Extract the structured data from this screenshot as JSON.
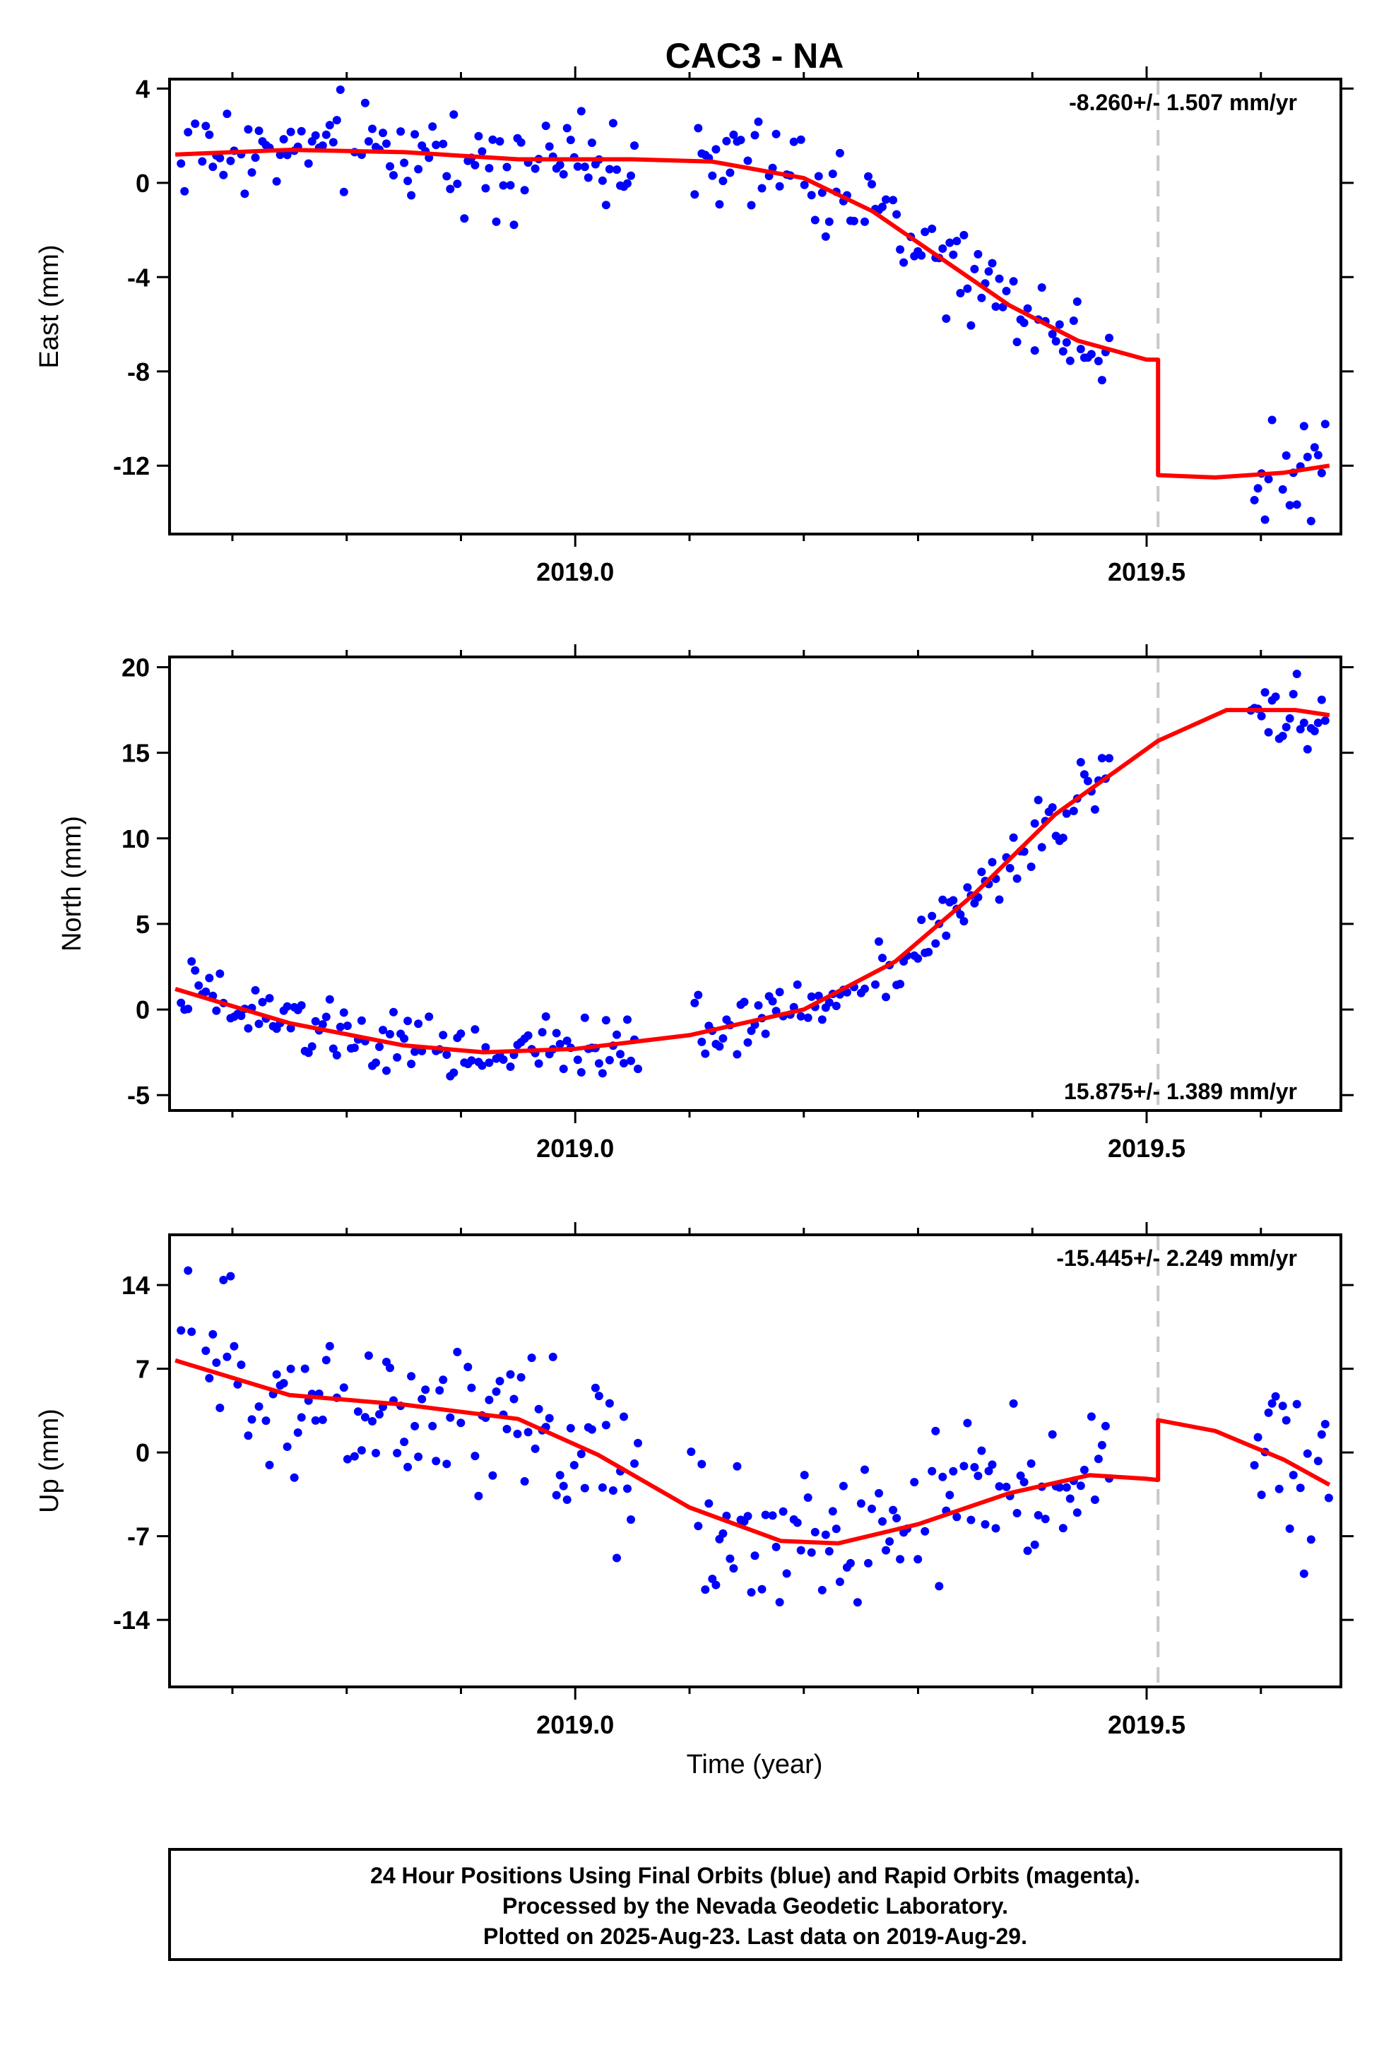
{
  "chart_data": {
    "type": "scatter",
    "title": "CAC3 - NA",
    "xlabel": "Time (year)",
    "x_tick_labels": [
      "2019.0",
      "2019.5"
    ],
    "xlim": [
      2018.645,
      2019.67
    ],
    "step_epoch": 2019.51,
    "colors": {
      "final_orbits": "#0000ff",
      "model": "#ff0000",
      "step_line": "#c8c8c8"
    },
    "panels": [
      {
        "name": "East",
        "ylabel": "East (mm)",
        "ylim": [
          -14.9,
          4.4
        ],
        "yticks": [
          4,
          0,
          -4,
          -8,
          -12
        ],
        "ytick_labels": [
          "4",
          "0",
          "-4",
          "-8",
          "-12"
        ],
        "rate_text": "-8.260+/- 1.507 mm/yr",
        "rate_position": "top-right",
        "model_curve": [
          [
            2018.65,
            1.2
          ],
          [
            2018.75,
            1.4
          ],
          [
            2018.85,
            1.3
          ],
          [
            2018.95,
            1.0
          ],
          [
            2019.05,
            1.0
          ],
          [
            2019.12,
            0.9
          ],
          [
            2019.2,
            0.2
          ],
          [
            2019.26,
            -1.2
          ],
          [
            2019.32,
            -3.2
          ],
          [
            2019.38,
            -5.2
          ],
          [
            2019.44,
            -6.7
          ],
          [
            2019.5,
            -7.5
          ],
          [
            2019.51,
            -7.5
          ],
          [
            2019.51,
            -12.4
          ],
          [
            2019.56,
            -12.5
          ],
          [
            2019.62,
            -12.3
          ],
          [
            2019.66,
            -12.0
          ]
        ],
        "points": []
      },
      {
        "name": "North",
        "ylabel": "North (mm)",
        "ylim": [
          -5.9,
          20.6
        ],
        "yticks": [
          20,
          15,
          10,
          5,
          0,
          -5
        ],
        "ytick_labels": [
          "20",
          "15",
          "10",
          "5",
          "0",
          "-5"
        ],
        "rate_text": "15.875+/- 1.389 mm/yr",
        "rate_position": "bottom-right",
        "model_curve": [
          [
            2018.65,
            1.2
          ],
          [
            2018.75,
            -0.8
          ],
          [
            2018.85,
            -2.1
          ],
          [
            2018.92,
            -2.5
          ],
          [
            2019.0,
            -2.3
          ],
          [
            2019.1,
            -1.5
          ],
          [
            2019.2,
            0.0
          ],
          [
            2019.28,
            2.8
          ],
          [
            2019.35,
            6.8
          ],
          [
            2019.42,
            11.4
          ],
          [
            2019.51,
            15.7
          ],
          [
            2019.57,
            17.5
          ],
          [
            2019.63,
            17.5
          ],
          [
            2019.66,
            17.2
          ]
        ],
        "points": []
      },
      {
        "name": "Up",
        "ylabel": "Up (mm)",
        "ylim": [
          -19.6,
          18.2
        ],
        "yticks": [
          14,
          7,
          0,
          -7,
          -14
        ],
        "ytick_labels": [
          "14",
          "7",
          "0",
          "-7",
          "-14"
        ],
        "rate_text": "-15.445+/- 2.249 mm/yr",
        "rate_position": "top-right",
        "model_curve": [
          [
            2018.65,
            7.7
          ],
          [
            2018.75,
            4.8
          ],
          [
            2018.85,
            4.0
          ],
          [
            2018.95,
            2.8
          ],
          [
            2019.02,
            -0.2
          ],
          [
            2019.1,
            -4.6
          ],
          [
            2019.18,
            -7.4
          ],
          [
            2019.23,
            -7.6
          ],
          [
            2019.3,
            -6.0
          ],
          [
            2019.38,
            -3.4
          ],
          [
            2019.45,
            -1.9
          ],
          [
            2019.5,
            -2.2
          ],
          [
            2019.51,
            -2.3
          ],
          [
            2019.51,
            2.7
          ],
          [
            2019.56,
            1.8
          ],
          [
            2019.62,
            -0.6
          ],
          [
            2019.66,
            -2.7
          ]
        ],
        "points": []
      }
    ]
  },
  "footer": {
    "line1": "24 Hour Positions Using Final Orbits (blue) and Rapid Orbits (magenta).",
    "line2": "Processed by the Nevada Geodetic Laboratory.",
    "line3": "Plotted on 2025-Aug-23. Last data on 2019-Aug-29."
  }
}
